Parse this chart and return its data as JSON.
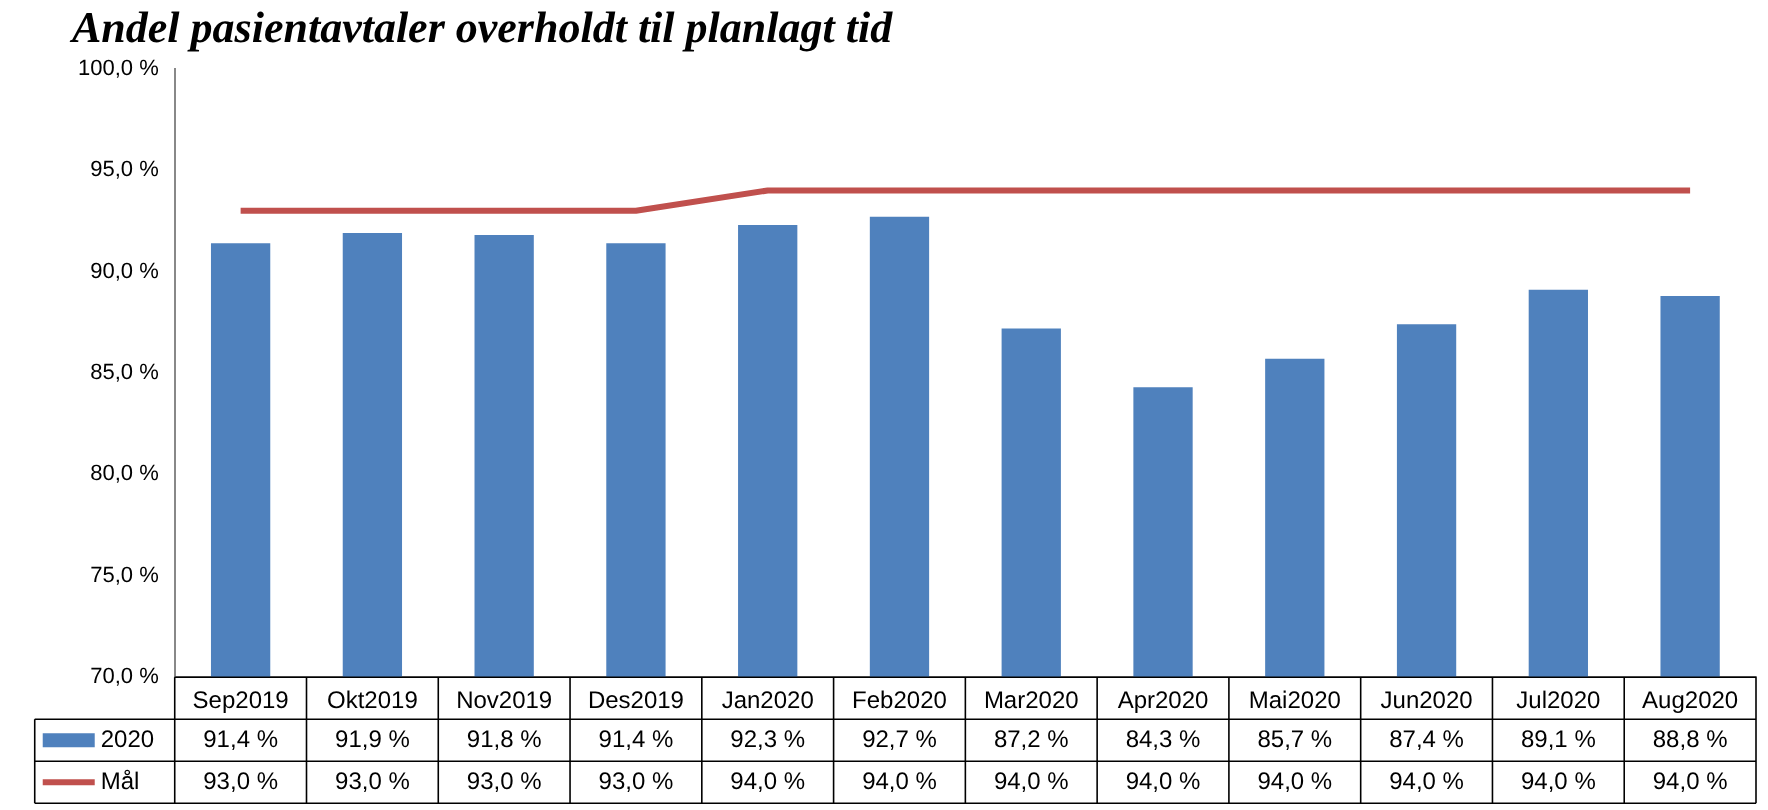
{
  "chart_data": {
    "type": "bar",
    "title": "Andel pasientavtaler overholdt til planlagt tid",
    "categories": [
      "Sep2019",
      "Okt2019",
      "Nov2019",
      "Des2019",
      "Jan2020",
      "Feb2020",
      "Mar2020",
      "Apr2020",
      "Mai2020",
      "Jun2020",
      "Jul2020",
      "Aug2020"
    ],
    "series": [
      {
        "name": "2020",
        "color": "#4f81bd",
        "values": [
          91.4,
          91.9,
          91.8,
          91.4,
          92.3,
          92.7,
          87.2,
          84.3,
          85.7,
          87.4,
          89.1,
          88.8
        ],
        "value_labels": [
          "91,4 %",
          "91,9 %",
          "91,8 %",
          "91,4 %",
          "92,3 %",
          "92,7 %",
          "87,2 %",
          "84,3 %",
          "85,7 %",
          "87,4 %",
          "89,1 %",
          "88,8 %"
        ]
      },
      {
        "name": "Mål",
        "type": "line",
        "color": "#c0504d",
        "marker": "none",
        "values": [
          93.0,
          93.0,
          93.0,
          93.0,
          94.0,
          94.0,
          94.0,
          94.0,
          94.0,
          94.0,
          94.0,
          94.0
        ],
        "value_labels": [
          "93,0 %",
          "93,0 %",
          "93,0 %",
          "93,0 %",
          "94,0 %",
          "94,0 %",
          "94,0 %",
          "94,0 %",
          "94,0 %",
          "94,0 %",
          "94,0 %",
          "94,0 %"
        ]
      }
    ],
    "ylim": [
      70,
      100
    ],
    "yticks": [
      {
        "value": 70,
        "label": "70,0 %"
      },
      {
        "value": 75,
        "label": "75,0 %"
      },
      {
        "value": 80,
        "label": "80,0 %"
      },
      {
        "value": 85,
        "label": "85,0 %"
      },
      {
        "value": 90,
        "label": "90,0 %"
      },
      {
        "value": 95,
        "label": "95,0 %"
      },
      {
        "value": 100,
        "label": "100,0 %"
      }
    ],
    "grid": false,
    "legend": "bottom"
  }
}
